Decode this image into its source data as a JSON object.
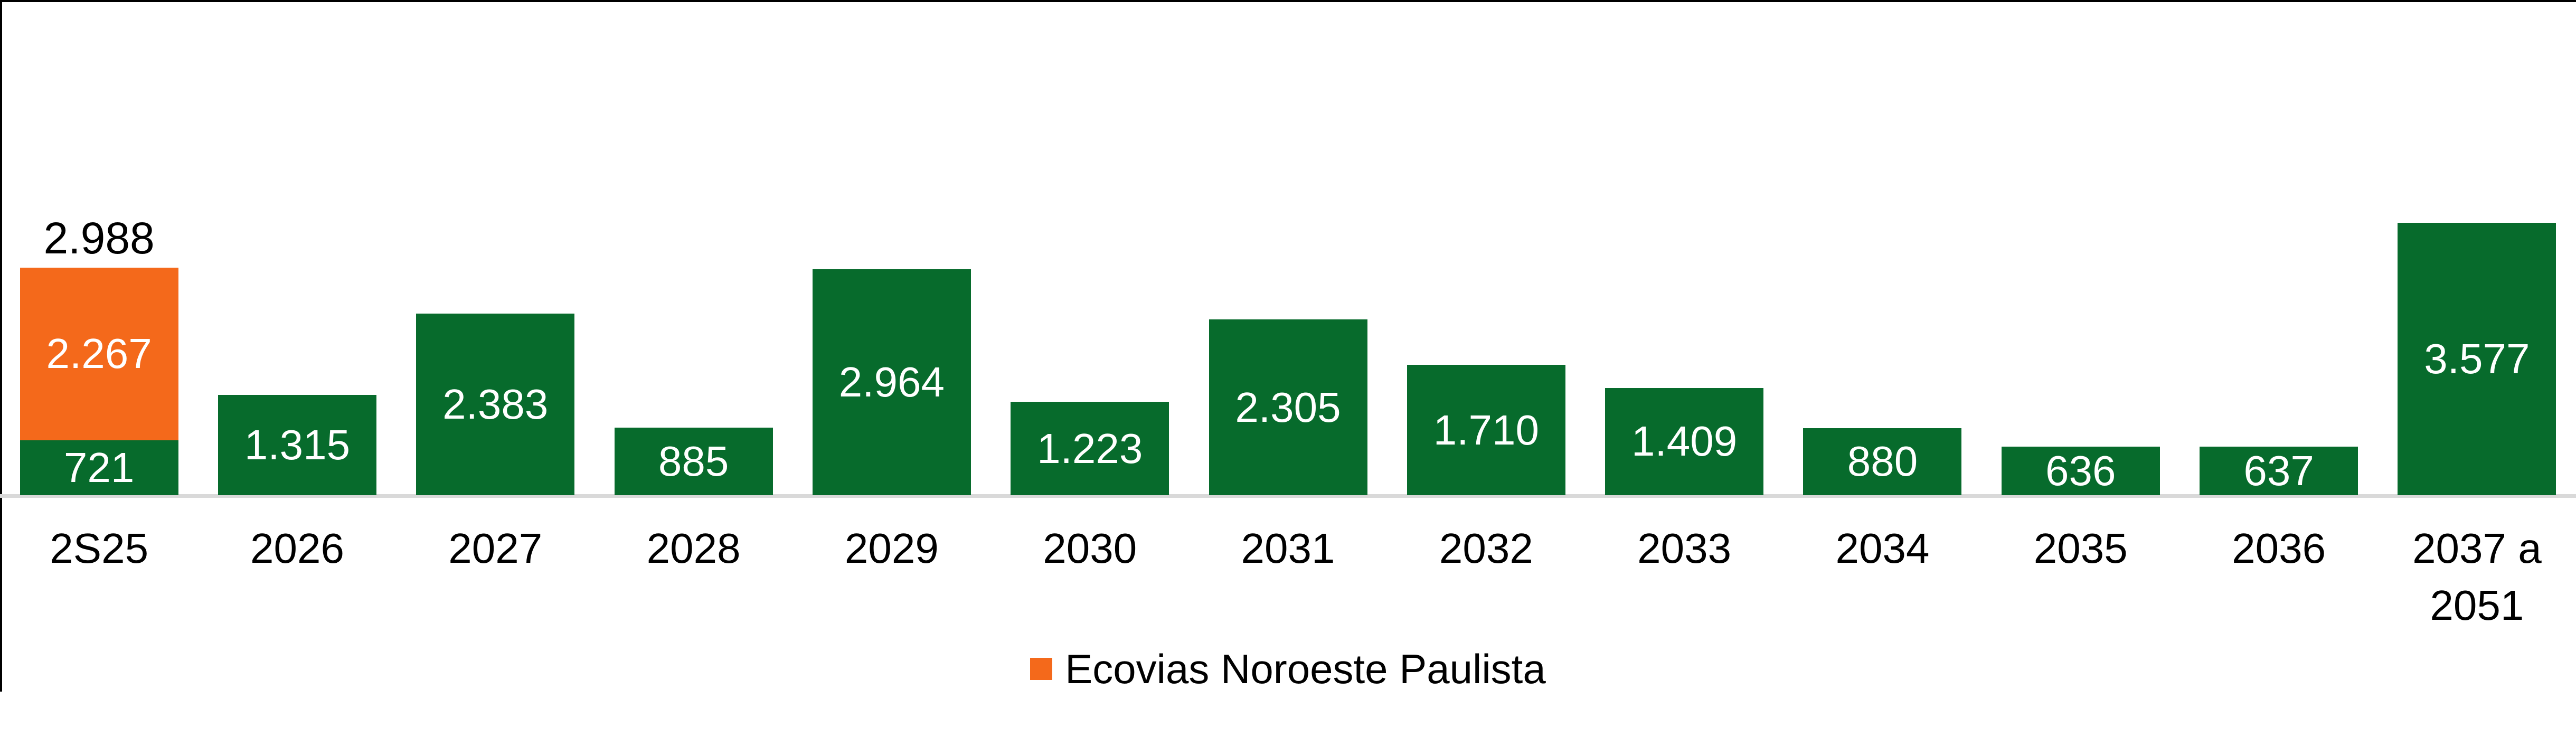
{
  "chart_data": {
    "type": "bar",
    "stacked": true,
    "orientation": "vertical",
    "grid": false,
    "axis_line_color": "#D9D9D9",
    "categories": [
      "2S25",
      "2026",
      "2027",
      "2028",
      "2029",
      "2030",
      "2031",
      "2032",
      "2033",
      "2034",
      "2035",
      "2036",
      "2037 a\n2051"
    ],
    "series": [
      {
        "name": "",
        "color": "#076B2C",
        "label_color": "#FFFFFF",
        "values": [
          721,
          1315,
          2383,
          885,
          2964,
          1223,
          2305,
          1710,
          1409,
          880,
          636,
          637,
          3577
        ],
        "labels": [
          "721",
          "1.315",
          "2.383",
          "885",
          "2.964",
          "1.223",
          "2.305",
          "1.710",
          "1.409",
          "880",
          "636",
          "637",
          "3.577"
        ]
      },
      {
        "name": "Ecovias Noroeste Paulista",
        "color": "#F4691B",
        "label_color": "#FFFFFF",
        "values": [
          2267,
          0,
          0,
          0,
          0,
          0,
          0,
          0,
          0,
          0,
          0,
          0,
          0
        ],
        "labels": [
          "2.267",
          "",
          "",
          "",
          "",
          "",
          "",
          "",
          "",
          "",
          "",
          "",
          ""
        ]
      }
    ],
    "total_labels": [
      "2.988",
      "",
      "",
      "",
      "",
      "",
      "",
      "",
      "",
      "",
      "",
      "",
      ""
    ],
    "legend": [
      {
        "label": "Ecovias Noroeste Paulista",
        "color": "#F4691B"
      }
    ],
    "legend_position": "bottom"
  }
}
